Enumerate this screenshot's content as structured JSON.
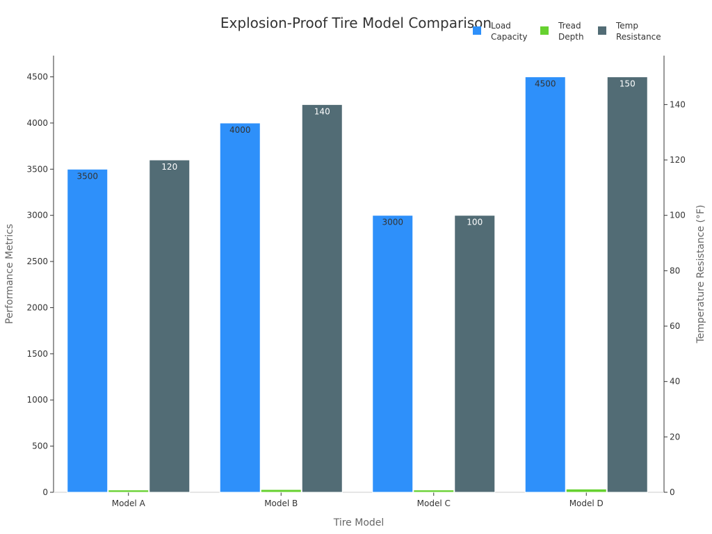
{
  "chart_data": {
    "type": "bar",
    "title": "Explosion-Proof Tire Model Comparison",
    "xlabel": "Tire Model",
    "ylabel": "Performance Metrics",
    "y2label": "Temperature Resistance (°F)",
    "categories": [
      "Model A",
      "Model B",
      "Model C",
      "Model D"
    ],
    "ylim": [
      0,
      4730
    ],
    "y_ticks": [
      0,
      500,
      1000,
      1500,
      2000,
      2500,
      3000,
      3500,
      4000,
      4500
    ],
    "y2lim": [
      0,
      157.67
    ],
    "y2_ticks": [
      0,
      20,
      40,
      60,
      80,
      100,
      120,
      140
    ],
    "grid": false,
    "legend": "top-right",
    "series": [
      {
        "name": [
          "Load",
          "Capacity"
        ],
        "axis": "left",
        "color": "#2E90FA",
        "values": [
          3500,
          4000,
          3000,
          4500
        ],
        "label_color": "#333333",
        "labels": [
          "3500",
          "4000",
          "3000",
          "4500"
        ]
      },
      {
        "name": [
          "Tread",
          "Depth"
        ],
        "axis": "left",
        "color": "#66D12F",
        "values": [
          25,
          30,
          25,
          35
        ],
        "label_color": "#333333",
        "labels": [
          "",
          "",
          "",
          ""
        ]
      },
      {
        "name": [
          "Temp",
          "Resistance"
        ],
        "axis": "right",
        "color": "#526C75",
        "values": [
          120,
          140,
          100,
          150
        ],
        "label_color": "#ffffff",
        "labels": [
          "120",
          "140",
          "100",
          "150"
        ]
      }
    ]
  }
}
